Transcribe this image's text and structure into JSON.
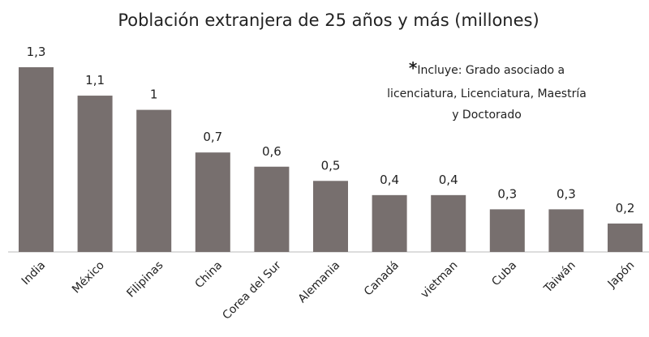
{
  "chart_data": {
    "type": "bar",
    "title": "Población extranjera de 25 años y más (millones)",
    "categories": [
      "India",
      "México",
      "Filipinas",
      "China",
      "Corea del Sur",
      "Alemania",
      "Canadá",
      "vietman",
      "Cuba",
      "Taiwán",
      "Japón"
    ],
    "values": [
      1.3,
      1.1,
      1,
      0.7,
      0.6,
      0.5,
      0.4,
      0.4,
      0.3,
      0.3,
      0.2
    ],
    "value_labels": [
      "1,3",
      "1,1",
      "1",
      "0,7",
      "0,6",
      "0,5",
      "0,4",
      "0,4",
      "0,3",
      "0,3",
      "0,2"
    ],
    "color": "#776f6e",
    "annotation": [
      "*",
      "Incluye: Grado asociado a",
      "licenciatura, Licenciatura, Maestría",
      "y Doctorado"
    ]
  }
}
